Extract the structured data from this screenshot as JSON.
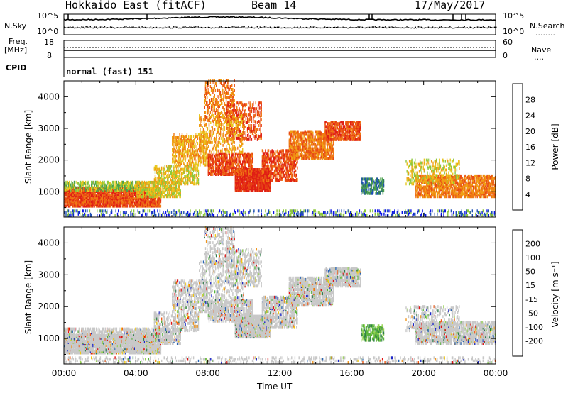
{
  "header": {
    "station": "Hokkaido East (fitACF)",
    "beam": "Beam 14",
    "date": "17/May/2017"
  },
  "top_panels": {
    "nsky_label": "N.Sky",
    "nsearch_label": "N.Search",
    "nsearch_marker": "........",
    "noise_ticks": [
      "10^5",
      "10^0"
    ],
    "freq_label": "Freq.",
    "freq_unit": "[MHz]",
    "freq_ticks": [
      "18",
      "8"
    ],
    "nave_label": "Nave",
    "nave_marker": "....",
    "nave_ticks": [
      "60",
      "0"
    ],
    "cpid_label": "CPID",
    "cpid_value": "normal (fast) 151"
  },
  "chart_data": [
    {
      "type": "heatmap",
      "name": "power",
      "ylabel": "Slant Range [km]",
      "xlabel": "Time UT",
      "x_ticks": [
        "00:00",
        "04:00",
        "08:00",
        "12:00",
        "16:00",
        "20:00",
        "00:00"
      ],
      "x_range_hours": [
        0,
        24
      ],
      "y_ticks": [
        1000,
        2000,
        3000,
        4000
      ],
      "ylim": [
        200,
        4500
      ],
      "colorbar": {
        "label": "Power [dB]",
        "ticks": [
          "4",
          "8",
          "12",
          "16",
          "20",
          "24",
          "28"
        ],
        "colors": [
          "#0a14e6",
          "#1e50b4",
          "#2e7d5a",
          "#4aa04a",
          "#8cc83c",
          "#e8c81e",
          "#f0a014",
          "#f07814",
          "#e84c14",
          "#e01e14"
        ]
      }
    },
    {
      "type": "heatmap",
      "name": "velocity",
      "ylabel": "Slant Range [km]",
      "xlabel": "Time UT",
      "x_ticks": [
        "00:00",
        "04:00",
        "08:00",
        "12:00",
        "16:00",
        "20:00",
        "00:00"
      ],
      "x_range_hours": [
        0,
        24
      ],
      "y_ticks": [
        1000,
        2000,
        3000,
        4000
      ],
      "ylim": [
        200,
        4500
      ],
      "colorbar": {
        "label": "Velocity [m s⁻¹]",
        "ticks": [
          "200",
          "100",
          "50",
          "15",
          "-15",
          "-50",
          "-100",
          "-200"
        ],
        "colors": [
          "#1e28c8",
          "#2864b4",
          "#2e7d4a",
          "#5ab43c",
          "#96d250",
          "#c8c8c8",
          "#f0c814",
          "#f0961e",
          "#f05a14",
          "#e01414"
        ]
      }
    }
  ],
  "echo_regions": [
    {
      "t0": 0.0,
      "t1": 5.4,
      "r0": 500,
      "r1": 1100,
      "p": 0.85,
      "c": [
        7,
        8,
        9
      ]
    },
    {
      "t0": 0.0,
      "t1": 4.5,
      "r0": 1000,
      "r1": 1300,
      "p": 0.5,
      "c": [
        3,
        4,
        5
      ]
    },
    {
      "t0": 4.0,
      "t1": 6.5,
      "r0": 800,
      "r1": 1300,
      "p": 0.6,
      "c": [
        4,
        5,
        6
      ]
    },
    {
      "t0": 5.0,
      "t1": 7.5,
      "r0": 1200,
      "r1": 1800,
      "p": 0.45,
      "c": [
        4,
        5,
        6
      ]
    },
    {
      "t0": 6.0,
      "t1": 8.0,
      "r0": 1800,
      "r1": 2800,
      "p": 0.45,
      "c": [
        5,
        6,
        7
      ]
    },
    {
      "t0": 7.8,
      "t1": 9.5,
      "r0": 3200,
      "r1": 4500,
      "p": 0.3,
      "c": [
        6,
        7,
        8
      ]
    },
    {
      "t0": 9.5,
      "t1": 11.5,
      "r0": 1000,
      "r1": 1700,
      "p": 0.9,
      "c": [
        8,
        9,
        9
      ]
    },
    {
      "t0": 8.0,
      "t1": 10.5,
      "r0": 1500,
      "r1": 2200,
      "p": 0.6,
      "c": [
        7,
        8,
        9
      ]
    },
    {
      "t0": 9.0,
      "t1": 11.0,
      "r0": 2600,
      "r1": 3800,
      "p": 0.35,
      "c": [
        7,
        8,
        9
      ]
    },
    {
      "t0": 11.0,
      "t1": 13.0,
      "r0": 1300,
      "r1": 2300,
      "p": 0.55,
      "c": [
        7,
        8,
        9
      ]
    },
    {
      "t0": 12.5,
      "t1": 15.0,
      "r0": 2000,
      "r1": 2900,
      "p": 0.65,
      "c": [
        6,
        7,
        8
      ]
    },
    {
      "t0": 14.5,
      "t1": 16.5,
      "r0": 2600,
      "r1": 3200,
      "p": 0.7,
      "c": [
        7,
        8,
        9
      ]
    },
    {
      "t0": 16.5,
      "t1": 17.8,
      "r0": 900,
      "r1": 1400,
      "p": 0.55,
      "c": [
        1,
        2,
        3
      ]
    },
    {
      "t0": 19.5,
      "t1": 24.0,
      "r0": 800,
      "r1": 1500,
      "p": 0.65,
      "c": [
        6,
        7,
        8
      ]
    },
    {
      "t0": 19.0,
      "t1": 22.0,
      "r0": 1200,
      "r1": 2000,
      "p": 0.25,
      "c": [
        4,
        5,
        6
      ]
    },
    {
      "t0": 0.0,
      "t1": 24.0,
      "r0": 200,
      "r1": 400,
      "p": 0.25,
      "c": [
        0,
        1,
        4
      ]
    },
    {
      "t0": 7.5,
      "t1": 10.0,
      "r0": 2200,
      "r1": 3400,
      "p": 0.25,
      "c": [
        5,
        6,
        7
      ]
    }
  ]
}
